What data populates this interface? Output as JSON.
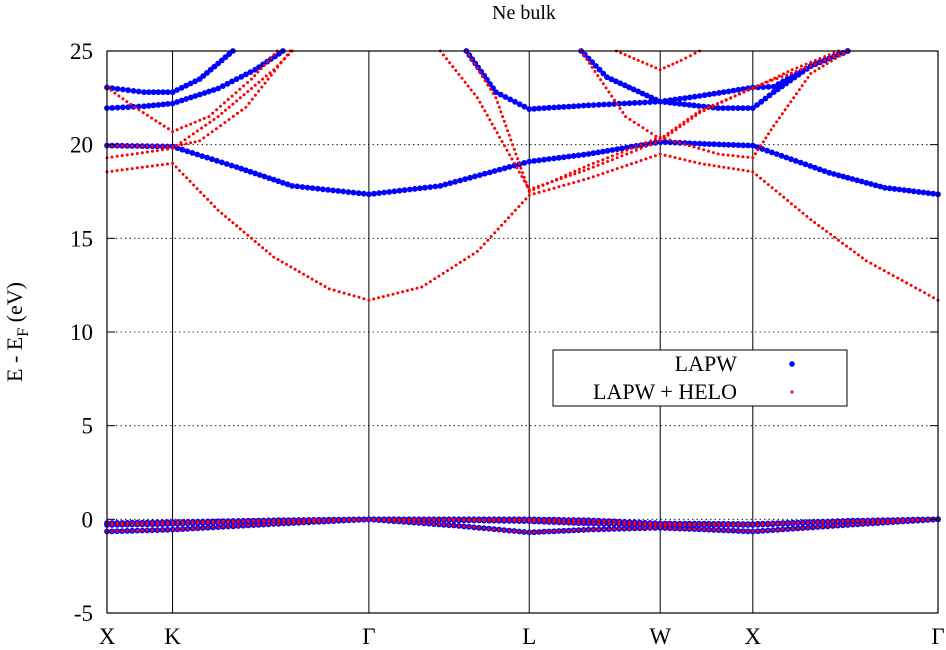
{
  "chart_data": {
    "type": "scatter",
    "title": "Ne bulk",
    "xlabel": "",
    "ylabel": "E - E",
    "ylabel_subscript": "F",
    "ylabel_unit": " (eV)",
    "ylim": [
      -5,
      25
    ],
    "yticks": [
      -5,
      0,
      5,
      10,
      15,
      20,
      25
    ],
    "grid": "dotted horizontal at y-ticks",
    "legend_position": "right-middle",
    "kpath": [
      {
        "label": "X",
        "x": 0.0
      },
      {
        "label": "K",
        "x": 0.354
      },
      {
        "label": "Γ",
        "x": 1.414
      },
      {
        "label": "L",
        "x": 2.28
      },
      {
        "label": "W",
        "x": 2.987
      },
      {
        "label": "X",
        "x": 3.487
      },
      {
        "label": "Γ",
        "x": 4.487
      }
    ],
    "series": [
      {
        "name": "LAPW",
        "color": "#0000ff",
        "marker": "dot-large",
        "bands": [
          [
            [
              0.0,
              -0.65
            ],
            [
              0.354,
              -0.55
            ],
            [
              0.9,
              -0.25
            ],
            [
              1.414,
              0.0
            ],
            [
              1.9,
              -0.35
            ],
            [
              2.28,
              -0.7
            ],
            [
              2.6,
              -0.55
            ],
            [
              2.987,
              -0.45
            ],
            [
              3.487,
              -0.65
            ],
            [
              4.0,
              -0.3
            ],
            [
              4.487,
              0.0
            ]
          ],
          [
            [
              0.0,
              -0.3
            ],
            [
              0.354,
              -0.25
            ],
            [
              0.9,
              -0.08
            ],
            [
              1.414,
              0.0
            ],
            [
              1.9,
              -0.05
            ],
            [
              2.28,
              -0.1
            ],
            [
              2.6,
              -0.22
            ],
            [
              2.987,
              -0.3
            ],
            [
              3.487,
              -0.3
            ],
            [
              4.0,
              -0.1
            ],
            [
              4.487,
              0.0
            ]
          ],
          [
            [
              0.0,
              -0.2
            ],
            [
              0.354,
              -0.15
            ],
            [
              0.9,
              -0.05
            ],
            [
              1.414,
              0.0
            ],
            [
              1.9,
              0.0
            ],
            [
              2.28,
              0.0
            ],
            [
              2.6,
              -0.05
            ],
            [
              2.987,
              -0.22
            ],
            [
              3.487,
              -0.25
            ],
            [
              4.0,
              -0.08
            ],
            [
              4.487,
              0.0
            ]
          ],
          [
            [
              0.0,
              19.95
            ],
            [
              0.354,
              19.9
            ],
            [
              0.7,
              18.8
            ],
            [
              1.0,
              17.8
            ],
            [
              1.414,
              17.35
            ],
            [
              1.8,
              17.8
            ],
            [
              2.28,
              19.1
            ],
            [
              2.6,
              19.5
            ],
            [
              2.987,
              20.15
            ],
            [
              3.2,
              20.05
            ],
            [
              3.487,
              19.95
            ],
            [
              3.9,
              18.5
            ],
            [
              4.2,
              17.7
            ],
            [
              4.487,
              17.35
            ]
          ],
          [
            [
              0.0,
              21.95
            ],
            [
              0.2,
              22.05
            ],
            [
              0.354,
              22.2
            ],
            [
              0.6,
              23.0
            ],
            [
              0.8,
              24.0
            ],
            [
              0.95,
              25.0
            ]
          ],
          [
            [
              0.0,
              23.05
            ],
            [
              0.2,
              22.8
            ],
            [
              0.354,
              22.8
            ],
            [
              0.5,
              23.5
            ],
            [
              0.68,
              25.0
            ]
          ],
          [
            [
              1.94,
              25.0
            ],
            [
              2.1,
              22.8
            ],
            [
              2.28,
              21.9
            ],
            [
              2.6,
              22.1
            ],
            [
              2.987,
              22.3
            ],
            [
              3.3,
              21.95
            ],
            [
              3.487,
              21.95
            ],
            [
              3.6,
              22.8
            ],
            [
              3.8,
              24.2
            ],
            [
              4.0,
              25.0
            ]
          ],
          [
            [
              2.56,
              25.0
            ],
            [
              2.7,
              23.6
            ],
            [
              2.987,
              22.3
            ],
            [
              3.2,
              22.6
            ],
            [
              3.487,
              23.05
            ],
            [
              3.6,
              23.1
            ],
            [
              3.8,
              24.2
            ],
            [
              4.0,
              25.0
            ]
          ]
        ]
      },
      {
        "name": "LAPW + HELO",
        "color": "#ff0000",
        "marker": "dot-small",
        "bands": [
          [
            [
              0.0,
              -0.65
            ],
            [
              0.354,
              -0.55
            ],
            [
              0.9,
              -0.25
            ],
            [
              1.414,
              0.0
            ],
            [
              1.9,
              -0.35
            ],
            [
              2.28,
              -0.7
            ],
            [
              2.6,
              -0.55
            ],
            [
              2.987,
              -0.45
            ],
            [
              3.487,
              -0.65
            ],
            [
              4.0,
              -0.3
            ],
            [
              4.487,
              0.0
            ]
          ],
          [
            [
              0.0,
              -0.3
            ],
            [
              0.354,
              -0.25
            ],
            [
              0.9,
              -0.08
            ],
            [
              1.414,
              0.0
            ],
            [
              1.9,
              -0.05
            ],
            [
              2.28,
              -0.1
            ],
            [
              2.6,
              -0.22
            ],
            [
              2.987,
              -0.3
            ],
            [
              3.487,
              -0.3
            ],
            [
              4.0,
              -0.1
            ],
            [
              4.487,
              0.0
            ]
          ],
          [
            [
              0.0,
              -0.2
            ],
            [
              0.354,
              -0.15
            ],
            [
              0.9,
              -0.05
            ],
            [
              1.414,
              0.0
            ],
            [
              1.9,
              0.0
            ],
            [
              2.28,
              0.0
            ],
            [
              2.6,
              -0.05
            ],
            [
              2.987,
              -0.22
            ],
            [
              3.487,
              -0.25
            ],
            [
              4.0,
              -0.08
            ],
            [
              4.487,
              0.0
            ]
          ],
          [
            [
              0.0,
              18.55
            ],
            [
              0.354,
              19.0
            ],
            [
              0.6,
              16.5
            ],
            [
              0.9,
              14.0
            ],
            [
              1.2,
              12.3
            ],
            [
              1.414,
              11.7
            ],
            [
              1.7,
              12.4
            ],
            [
              2.0,
              14.3
            ],
            [
              2.28,
              17.3
            ],
            [
              2.6,
              18.2
            ],
            [
              2.987,
              19.5
            ],
            [
              3.2,
              19.0
            ],
            [
              3.487,
              18.55
            ],
            [
              3.8,
              16.0
            ],
            [
              4.1,
              13.8
            ],
            [
              4.487,
              11.7
            ]
          ],
          [
            [
              0.0,
              19.3
            ],
            [
              0.354,
              19.8
            ],
            [
              0.6,
              21.5
            ],
            [
              0.9,
              24.0
            ],
            [
              1.0,
              25.0
            ]
          ],
          [
            [
              0.0,
              19.95
            ],
            [
              0.354,
              19.9
            ],
            [
              0.5,
              20.2
            ],
            [
              0.75,
              22.0
            ],
            [
              0.99,
              25.0
            ]
          ],
          [
            [
              0.0,
              23.05
            ],
            [
              0.15,
              22.0
            ],
            [
              0.354,
              20.7
            ],
            [
              0.55,
              21.5
            ],
            [
              0.78,
              23.5
            ],
            [
              0.92,
              25.0
            ]
          ],
          [
            [
              1.8,
              25.0
            ],
            [
              2.0,
              22.5
            ],
            [
              2.28,
              17.6
            ],
            [
              2.6,
              18.7
            ],
            [
              2.987,
              20.2
            ],
            [
              3.2,
              21.7
            ],
            [
              3.487,
              23.05
            ],
            [
              3.8,
              24.2
            ],
            [
              4.0,
              25.0
            ]
          ],
          [
            [
              1.94,
              25.0
            ],
            [
              2.1,
              22.5
            ],
            [
              2.28,
              17.5
            ],
            [
              2.6,
              18.9
            ],
            [
              2.987,
              20.4
            ],
            [
              3.3,
              19.5
            ],
            [
              3.487,
              19.3
            ],
            [
              3.6,
              21.0
            ],
            [
              3.8,
              23.8
            ],
            [
              4.0,
              25.0
            ]
          ],
          [
            [
              2.56,
              25.0
            ],
            [
              2.8,
              21.5
            ],
            [
              2.987,
              20.3
            ],
            [
              3.2,
              21.8
            ],
            [
              3.487,
              23.0
            ],
            [
              3.7,
              24.0
            ],
            [
              3.95,
              25.0
            ]
          ],
          [
            [
              2.75,
              25.0
            ],
            [
              2.987,
              24.0
            ],
            [
              3.1,
              24.5
            ],
            [
              3.2,
              25.0
            ]
          ]
        ]
      }
    ]
  }
}
